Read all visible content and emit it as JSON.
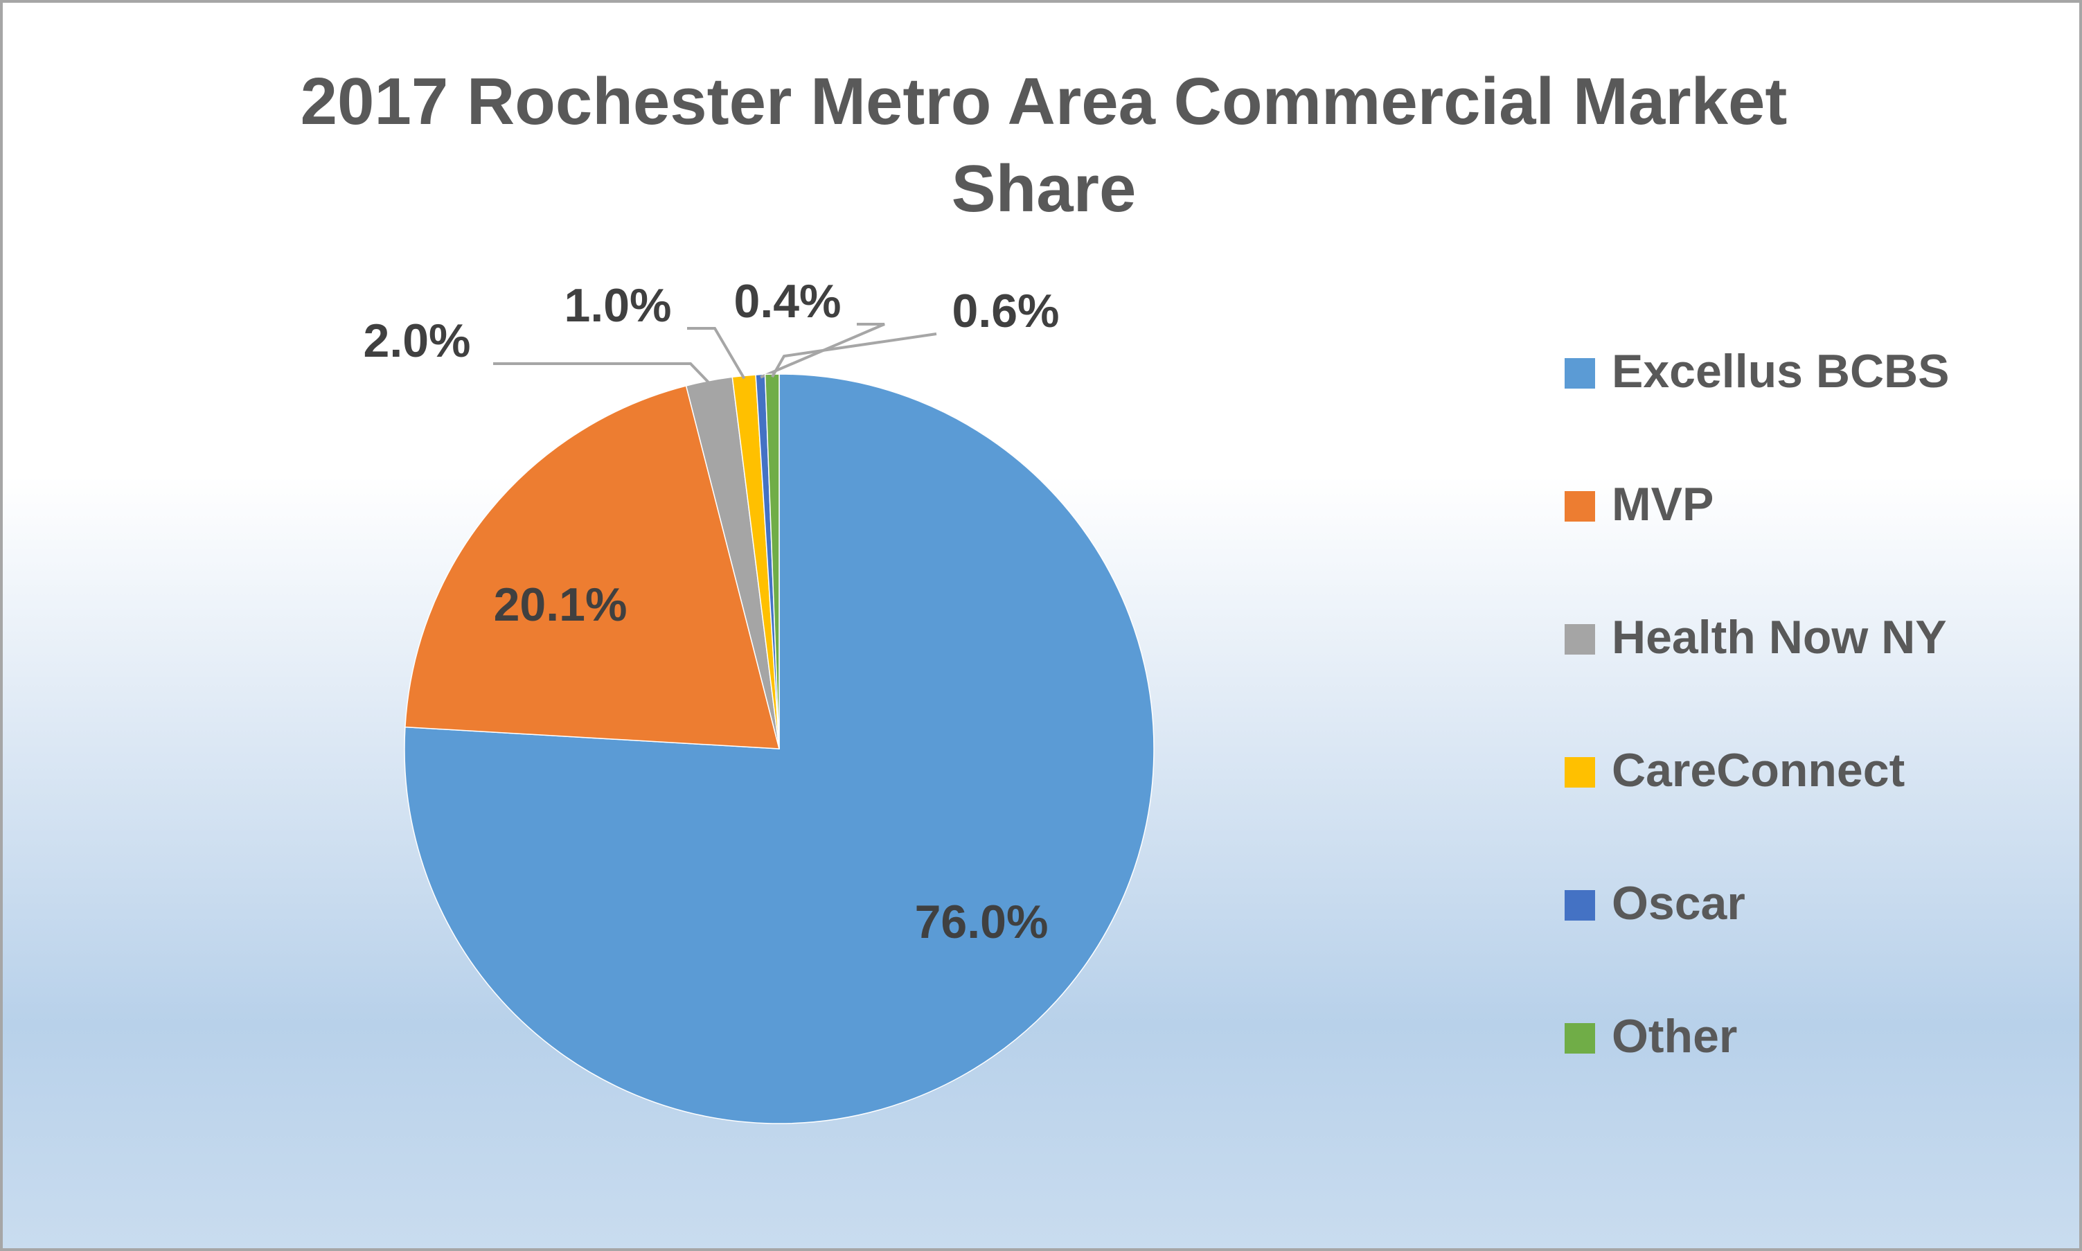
{
  "chart_data": {
    "type": "pie",
    "title": "2017 Rochester Metro Area Commercial Market Share",
    "categories": [
      "Excellus BCBS",
      "MVP",
      "Health Now NY",
      "CareConnect",
      "Oscar",
      "Other"
    ],
    "values": [
      76.0,
      20.1,
      2.0,
      1.0,
      0.4,
      0.6
    ],
    "value_labels": [
      "76.0%",
      "20.1%",
      "2.0%",
      "1.0%",
      "0.4%",
      "0.6%"
    ],
    "colors": [
      "#5b9bd5",
      "#ed7d31",
      "#a5a5a5",
      "#ffc000",
      "#4472c4",
      "#70ad47"
    ],
    "legend": "right"
  }
}
